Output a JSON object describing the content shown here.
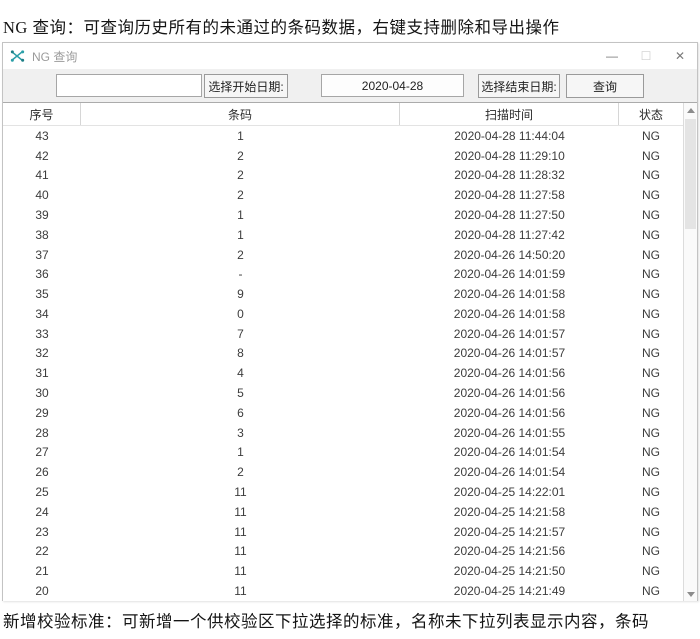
{
  "page": {
    "top_note": "NG 查询：可查询历史所有的未通过的条码数据，右键支持删除和导出操作",
    "bottom_note": "新增校验标准：可新增一个供校验区下拉选择的标准，名称未下拉列表显示内容，条码"
  },
  "window": {
    "title": "NG 查询",
    "icon": "app-scatter-icon",
    "icon_color": "#2b9fa8",
    "controls": {
      "minimize": "—",
      "maximize": "☐",
      "close": "✕"
    }
  },
  "toolbar": {
    "barcode_input": {
      "value": "",
      "placeholder": ""
    },
    "start_date_button": "选择开始日期:",
    "date_input_value": "2020-04-28",
    "end_date_button": "选择结束日期:",
    "query_button": "查询"
  },
  "table": {
    "columns": [
      "序号",
      "条码",
      "扫描时间",
      "状态"
    ],
    "rows": [
      [
        "43",
        "1",
        "2020-04-28 11:44:04",
        "NG"
      ],
      [
        "42",
        "2",
        "2020-04-28 11:29:10",
        "NG"
      ],
      [
        "41",
        "2",
        "2020-04-28 11:28:32",
        "NG"
      ],
      [
        "40",
        "2",
        "2020-04-28 11:27:58",
        "NG"
      ],
      [
        "39",
        "1",
        "2020-04-28 11:27:50",
        "NG"
      ],
      [
        "38",
        "1",
        "2020-04-28 11:27:42",
        "NG"
      ],
      [
        "37",
        "2",
        "2020-04-26 14:50:20",
        "NG"
      ],
      [
        "36",
        "-",
        "2020-04-26 14:01:59",
        "NG"
      ],
      [
        "35",
        "9",
        "2020-04-26 14:01:58",
        "NG"
      ],
      [
        "34",
        "0",
        "2020-04-26 14:01:58",
        "NG"
      ],
      [
        "33",
        "7",
        "2020-04-26 14:01:57",
        "NG"
      ],
      [
        "32",
        "8",
        "2020-04-26 14:01:57",
        "NG"
      ],
      [
        "31",
        "4",
        "2020-04-26 14:01:56",
        "NG"
      ],
      [
        "30",
        "5",
        "2020-04-26 14:01:56",
        "NG"
      ],
      [
        "29",
        "6",
        "2020-04-26 14:01:56",
        "NG"
      ],
      [
        "28",
        "3",
        "2020-04-26 14:01:55",
        "NG"
      ],
      [
        "27",
        "1",
        "2020-04-26 14:01:54",
        "NG"
      ],
      [
        "26",
        "2",
        "2020-04-26 14:01:54",
        "NG"
      ],
      [
        "25",
        "11",
        "2020-04-25 14:22:01",
        "NG"
      ],
      [
        "24",
        "11",
        "2020-04-25 14:21:58",
        "NG"
      ],
      [
        "23",
        "11",
        "2020-04-25 14:21:57",
        "NG"
      ],
      [
        "22",
        "11",
        "2020-04-25 14:21:56",
        "NG"
      ],
      [
        "21",
        "11",
        "2020-04-25 14:21:50",
        "NG"
      ],
      [
        "20",
        "11",
        "2020-04-25 14:21:49",
        "NG"
      ]
    ]
  }
}
